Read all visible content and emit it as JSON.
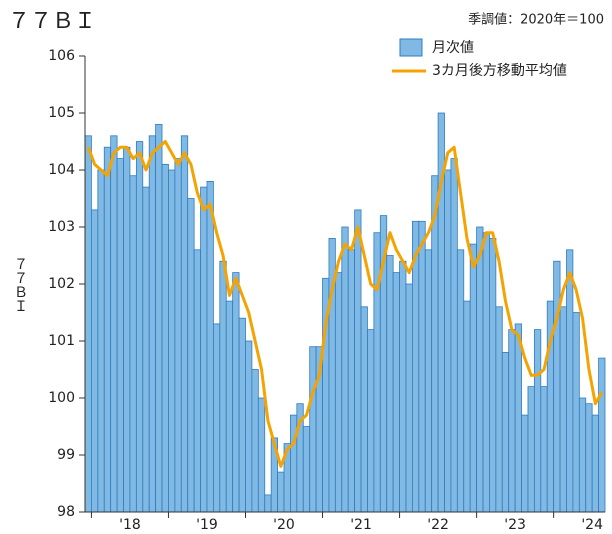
{
  "chart_data": {
    "type": "bar_line",
    "title": "７７ＢＩ",
    "subtitle": "季調値：2020年＝100",
    "y_label": "７７ＢＩ",
    "x_labels": [
      "'18",
      "'19",
      "'20",
      "'21",
      "'22",
      "'23",
      "'24"
    ],
    "ylim": [
      98,
      106
    ],
    "yticks": [
      98,
      99,
      100,
      101,
      102,
      103,
      104,
      105,
      106
    ],
    "legend": "top-right",
    "series": [
      {
        "name": "月次値",
        "color": "#80b9e3",
        "values": [
          104.6,
          103.3,
          104.0,
          104.4,
          104.6,
          104.2,
          104.4,
          103.9,
          104.5,
          103.7,
          104.6,
          104.8,
          104.1,
          104.0,
          104.2,
          104.6,
          103.5,
          102.6,
          103.7,
          103.8,
          101.3,
          102.4,
          101.7,
          102.2,
          101.4,
          101.0,
          100.5,
          100.0,
          98.3,
          99.3,
          98.7,
          99.2,
          99.7,
          99.9,
          99.5,
          100.9,
          100.9,
          102.1,
          102.8,
          102.2,
          103.0,
          102.6,
          103.3,
          101.6,
          101.2,
          102.9,
          103.2,
          102.5,
          102.2,
          102.4,
          102.0,
          103.1,
          103.1,
          102.6,
          103.9,
          105.0,
          104.0,
          104.2,
          102.6,
          101.7,
          102.7,
          103.0,
          102.9,
          102.8,
          101.6,
          100.8,
          101.2,
          101.3,
          99.7,
          100.2,
          101.2,
          100.2,
          101.7,
          102.4,
          101.6,
          102.6,
          101.5,
          100.0,
          99.9,
          99.7,
          100.7
        ]
      },
      {
        "name": "3カ月後方移動平均値",
        "color": "#f5a300",
        "values": [
          104.4,
          104.1,
          104.0,
          103.9,
          104.3,
          104.4,
          104.4,
          104.2,
          104.3,
          104.0,
          104.3,
          104.4,
          104.5,
          104.3,
          104.1,
          104.3,
          104.1,
          103.6,
          103.3,
          103.4,
          102.9,
          102.5,
          101.8,
          102.1,
          101.8,
          101.5,
          101.0,
          100.5,
          99.6,
          99.2,
          98.8,
          99.1,
          99.2,
          99.6,
          99.7,
          100.1,
          100.4,
          101.3,
          101.9,
          102.4,
          102.7,
          102.6,
          103.0,
          102.5,
          102.0,
          101.9,
          102.4,
          102.9,
          102.6,
          102.4,
          102.2,
          102.5,
          102.7,
          102.9,
          103.2,
          103.8,
          104.3,
          104.4,
          103.6,
          102.8,
          102.3,
          102.5,
          102.9,
          102.9,
          102.4,
          101.7,
          101.2,
          101.1,
          100.7,
          100.4,
          100.4,
          100.5,
          101.0,
          101.4,
          101.9,
          102.2,
          101.9,
          101.4,
          100.5,
          99.9,
          100.1
        ]
      }
    ]
  }
}
